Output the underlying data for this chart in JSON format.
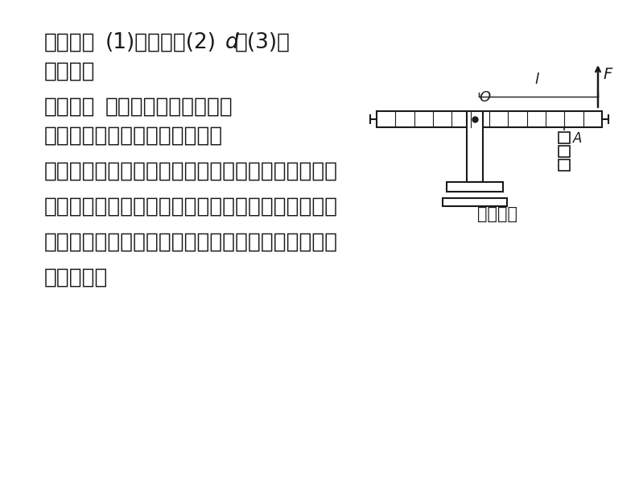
{
  "bg_color": "#FFFFFF",
  "text_color": "#1a1a1a",
  "line_color": "#1a1a1a",
  "title_line1": "【答案】(1)不悬挂;(2)$d$;(3)如",
  "title_line2": "答图所示",
  "section2_line1": "【点拨】实验时使杠杆在水平位",
  "section2_line2": "置平衡的好处有三条：一是便于",
  "body_line1": "测量力臂；二是可以忽略杠杆本身的重力对杠杆平衡",
  "body_line2": "的影响；三是在判断杠杆的平衡条件时可以把杠杆上",
  "body_line3": "的格子数和力直接相乘，这样可以方便地判断出杠杆",
  "body_line4": "是否平衡。",
  "caption": "（答图）",
  "font_size_main": 18,
  "font_size_body": 20
}
